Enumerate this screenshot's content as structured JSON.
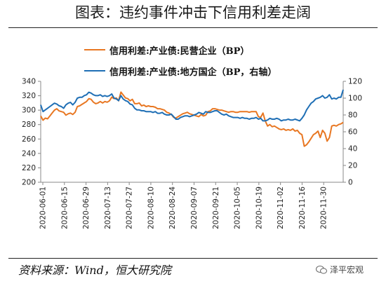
{
  "title": "图表：违约事件冲击下信用利差走阔",
  "source_text": "资料来源：Wind，恒大研究院",
  "watermark": "泽平宏观",
  "chart_data": {
    "type": "line",
    "left_axis": {
      "ticks": [
        200,
        220,
        240,
        260,
        280,
        300,
        320,
        340
      ],
      "ylim": [
        200,
        340
      ]
    },
    "right_axis": {
      "ticks": [
        0,
        20,
        40,
        60,
        80,
        100,
        120
      ],
      "ylim": [
        0,
        120
      ]
    },
    "x_tick_labels": [
      "2020-06-01",
      "2020-06-15",
      "2020-06-29",
      "2020-07-13",
      "2020-07-27",
      "2020-08-10",
      "2020-08-24",
      "2020-09-07",
      "2020-09-21",
      "2020-10-05",
      "2020-10-19",
      "2020-11-02",
      "2020-11-16",
      "2020-11-30"
    ],
    "x_range": [
      0,
      132
    ],
    "series": [
      {
        "name": "信用利差:产业债:民营企业（BP）",
        "axis": "left",
        "color": "#E87722",
        "x": [
          0,
          1,
          2,
          3,
          4,
          5,
          6,
          7,
          8,
          9,
          10,
          11,
          12,
          13,
          14,
          15,
          16,
          17,
          18,
          19,
          20,
          21,
          22,
          23,
          24,
          25,
          26,
          27,
          28,
          29,
          30,
          31,
          32,
          33,
          34,
          35,
          36,
          37,
          38,
          39,
          40,
          41,
          42,
          43,
          44,
          45,
          46,
          47,
          48,
          49,
          50,
          51,
          52,
          53,
          54,
          55,
          56,
          57,
          58,
          59,
          60,
          61,
          62,
          63,
          64,
          65,
          66,
          67,
          68,
          69,
          70,
          71,
          72,
          73,
          74,
          75,
          76,
          77,
          78,
          79,
          80,
          81,
          82,
          83,
          84,
          85,
          86,
          87,
          88,
          89,
          90,
          91,
          92,
          93,
          94,
          95,
          96,
          97,
          98,
          99,
          100,
          101,
          102,
          103,
          104,
          105,
          106,
          107,
          108,
          109,
          110,
          111,
          112,
          113,
          114,
          115,
          116,
          117,
          118,
          119,
          120,
          121,
          122,
          123,
          124,
          125,
          126,
          127,
          128,
          129,
          130,
          131,
          132
        ],
        "values": [
          292,
          286,
          289,
          288,
          292,
          296,
          300,
          302,
          299,
          298,
          297,
          293,
          295,
          296,
          294,
          297,
          305,
          306,
          308,
          310,
          312,
          316,
          315,
          311,
          309,
          310,
          312,
          310,
          312,
          311,
          313,
          318,
          316,
          317,
          313,
          325,
          321,
          317,
          316,
          313,
          315,
          309,
          309,
          310,
          306,
          307,
          305,
          306,
          305,
          305,
          304,
          302,
          302,
          301,
          300,
          297,
          296,
          294,
          290,
          289,
          291,
          293,
          295,
          296,
          297,
          295,
          294,
          293,
          292,
          291,
          294,
          292,
          293,
          298,
          299,
          302,
          302,
          301,
          300,
          300,
          299,
          298,
          297,
          298,
          298,
          297,
          297,
          298,
          298,
          298,
          298,
          297,
          298,
          298,
          298,
          291,
          290,
          296,
          285,
          278,
          280,
          277,
          278,
          276,
          274,
          273,
          274,
          272,
          273,
          272,
          274,
          271,
          272,
          268,
          266,
          250,
          252,
          256,
          261,
          266,
          268,
          271,
          262,
          272,
          268,
          257,
          262,
          278,
          279,
          278,
          280,
          281,
          283
        ]
      },
      {
        "name": "信用利差:产业债:地方国企（BP，右轴）",
        "axis": "right",
        "color": "#1F6FB5",
        "x": [
          0,
          1,
          2,
          3,
          4,
          5,
          6,
          7,
          8,
          9,
          10,
          11,
          12,
          13,
          14,
          15,
          16,
          17,
          18,
          19,
          20,
          21,
          22,
          23,
          24,
          25,
          26,
          27,
          28,
          29,
          30,
          31,
          32,
          33,
          34,
          35,
          36,
          37,
          38,
          39,
          40,
          41,
          42,
          43,
          44,
          45,
          46,
          47,
          48,
          49,
          50,
          51,
          52,
          53,
          54,
          55,
          56,
          57,
          58,
          59,
          60,
          61,
          62,
          63,
          64,
          65,
          66,
          67,
          68,
          69,
          70,
          71,
          72,
          73,
          74,
          75,
          76,
          77,
          78,
          79,
          80,
          81,
          82,
          83,
          84,
          85,
          86,
          87,
          88,
          89,
          90,
          91,
          92,
          93,
          94,
          95,
          96,
          97,
          98,
          99,
          100,
          101,
          102,
          103,
          104,
          105,
          106,
          107,
          108,
          109,
          110,
          111,
          112,
          113,
          114,
          115,
          116,
          117,
          118,
          119,
          120,
          121,
          122,
          123,
          124,
          125,
          126,
          127,
          128,
          129,
          130,
          131,
          132
        ],
        "values": [
          92,
          84,
          86,
          88,
          90,
          92,
          94,
          93,
          91,
          90,
          88,
          92,
          94,
          95,
          92,
          95,
          100,
          101,
          101,
          103,
          104,
          107,
          106,
          104,
          103,
          103,
          104,
          102,
          103,
          102,
          103,
          105,
          100,
          99,
          97,
          103,
          99,
          97,
          96,
          93,
          92,
          88,
          86,
          86,
          85,
          85,
          84,
          84,
          84,
          83,
          84,
          82,
          82,
          83,
          81,
          80,
          80,
          81,
          78,
          75,
          75,
          77,
          78,
          79,
          79,
          78,
          79,
          80,
          81,
          83,
          82,
          81,
          84,
          83,
          83,
          84,
          85,
          85,
          83,
          81,
          80,
          81,
          79,
          78,
          77,
          77,
          77,
          76,
          77,
          76,
          76,
          75,
          76,
          76,
          77,
          75,
          76,
          73,
          73,
          74,
          76,
          75,
          75,
          76,
          75,
          73,
          74,
          74,
          75,
          74,
          74,
          75,
          74,
          73,
          76,
          80,
          86,
          90,
          94,
          96,
          99,
          100,
          101,
          103,
          100,
          101,
          104,
          99,
          100,
          99,
          101,
          101,
          110
        ]
      }
    ]
  }
}
